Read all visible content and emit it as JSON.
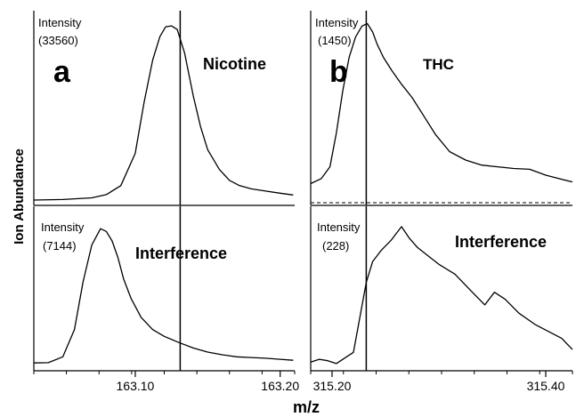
{
  "figure": {
    "ylabel": "Ion Abundance",
    "xlabel": "m/z"
  },
  "chart_data": [
    {
      "type": "line",
      "panel": "a",
      "name": "Nicotine",
      "intensity_label": "Intensity",
      "intensity_value": "(33560)",
      "xlim": [
        163.03,
        163.21
      ],
      "ylim": [
        0,
        1.05
      ],
      "x_ticks": [
        163.1,
        163.2
      ],
      "x_tick_labels": [
        "163.10",
        "163.20"
      ],
      "marker_x": 163.131,
      "x": [
        163.03,
        163.05,
        163.07,
        163.08,
        163.09,
        163.1,
        163.106,
        163.112,
        163.117,
        163.121,
        163.125,
        163.129,
        163.134,
        163.14,
        163.145,
        163.15,
        163.158,
        163.165,
        163.172,
        163.18,
        163.19,
        163.2,
        163.209
      ],
      "values": [
        0.02,
        0.023,
        0.032,
        0.05,
        0.1,
        0.28,
        0.56,
        0.8,
        0.93,
        0.985,
        0.99,
        0.97,
        0.84,
        0.6,
        0.43,
        0.3,
        0.19,
        0.13,
        0.1,
        0.082,
        0.07,
        0.058,
        0.048
      ]
    },
    {
      "type": "line",
      "panel": "a",
      "name": "Interference",
      "intensity_label": "Intensity",
      "intensity_value": "(7144)",
      "xlim": [
        163.03,
        163.21
      ],
      "ylim": [
        0,
        1.05
      ],
      "x_ticks": [
        163.1,
        163.2
      ],
      "x_tick_labels": [
        "163.10",
        "163.20"
      ],
      "marker_x": 163.131,
      "x": [
        163.03,
        163.04,
        163.05,
        163.058,
        163.064,
        163.07,
        163.076,
        163.08,
        163.084,
        163.088,
        163.092,
        163.097,
        163.104,
        163.112,
        163.12,
        163.13,
        163.14,
        163.15,
        163.16,
        163.17,
        163.18,
        163.19,
        163.2,
        163.209
      ],
      "values": [
        0.005,
        0.007,
        0.05,
        0.25,
        0.6,
        0.87,
        0.99,
        0.97,
        0.9,
        0.78,
        0.62,
        0.48,
        0.34,
        0.25,
        0.2,
        0.155,
        0.115,
        0.085,
        0.065,
        0.05,
        0.045,
        0.04,
        0.032,
        0.025
      ]
    },
    {
      "type": "line",
      "panel": "b",
      "name": "THC",
      "intensity_label": "Intensity",
      "intensity_value": "(1450)",
      "xlim": [
        315.18,
        315.425
      ],
      "ylim": [
        0,
        1.05
      ],
      "x_ticks": [
        315.2,
        315.4
      ],
      "x_tick_labels": [
        "315.20",
        "315.40"
      ],
      "marker_x": 315.232,
      "baseline": 0.0,
      "x": [
        315.18,
        315.19,
        315.198,
        315.204,
        315.21,
        315.216,
        315.222,
        315.228,
        315.233,
        315.238,
        315.242,
        315.248,
        315.256,
        315.265,
        315.275,
        315.285,
        315.297,
        315.31,
        315.325,
        315.34,
        315.355,
        315.37,
        315.385,
        315.4,
        315.412,
        315.425
      ],
      "values": [
        0.05,
        0.08,
        0.15,
        0.35,
        0.6,
        0.8,
        0.92,
        0.985,
        1.0,
        0.95,
        0.88,
        0.8,
        0.72,
        0.64,
        0.56,
        0.46,
        0.34,
        0.24,
        0.19,
        0.16,
        0.15,
        0.14,
        0.135,
        0.1,
        0.08,
        0.06
      ]
    },
    {
      "type": "line",
      "panel": "b",
      "name": "Interference",
      "intensity_label": "Intensity",
      "intensity_value": "(228)",
      "xlim": [
        315.18,
        315.425
      ],
      "ylim": [
        0,
        1.05
      ],
      "x_ticks": [
        315.2,
        315.4
      ],
      "x_tick_labels": [
        "315.20",
        "315.40"
      ],
      "marker_x": 315.232,
      "x": [
        315.18,
        315.188,
        315.196,
        315.204,
        315.212,
        315.22,
        315.226,
        315.232,
        315.238,
        315.246,
        315.255,
        315.265,
        315.272,
        315.28,
        315.29,
        315.3,
        315.315,
        315.33,
        315.343,
        315.352,
        315.362,
        315.375,
        315.39,
        315.405,
        315.415,
        315.425
      ],
      "values": [
        0.03,
        0.05,
        0.04,
        0.02,
        0.06,
        0.1,
        0.35,
        0.6,
        0.75,
        0.83,
        0.9,
        1.0,
        0.92,
        0.85,
        0.79,
        0.73,
        0.66,
        0.54,
        0.44,
        0.53,
        0.48,
        0.38,
        0.3,
        0.24,
        0.2,
        0.12
      ]
    }
  ]
}
